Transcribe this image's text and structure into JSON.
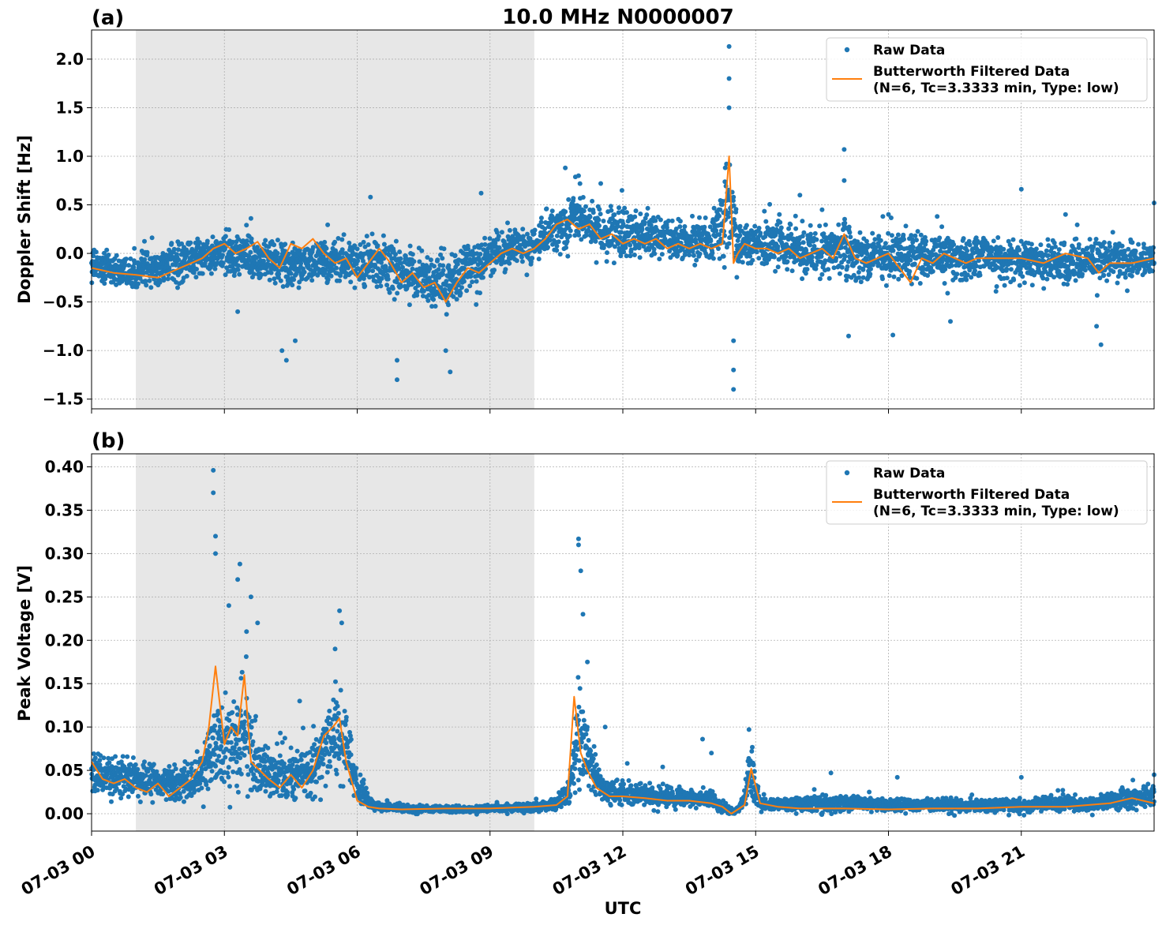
{
  "figure": {
    "title": "10.0 MHz N0000007",
    "xlabel": "UTC",
    "x_tick_labels": [
      "07-03 00",
      "07-03 03",
      "07-03 06",
      "07-03 09",
      "07-03 12",
      "07-03 15",
      "07-03 18",
      "07-03 21"
    ]
  },
  "colors": {
    "raw": "#1f77b4",
    "filtered": "#ff7f0e",
    "shade": "#e7e7e7",
    "grid": "#b0b0b0"
  },
  "chart_data": [
    {
      "type": "scatter",
      "panel_label": "(a)",
      "ylabel": "Doppler Shift [Hz]",
      "xlim_hours": [
        0,
        24
      ],
      "ylim": [
        -1.6,
        2.3
      ],
      "y_ticks": [
        -1.5,
        -1.0,
        -0.5,
        0.0,
        0.5,
        1.0,
        1.5,
        2.0
      ],
      "y_tick_labels": [
        "−1.5",
        "−1.0",
        "−0.5",
        "0.0",
        "0.5",
        "1.0",
        "1.5",
        "2.0"
      ],
      "shaded_span_hours": [
        1.0,
        10.0
      ],
      "grid": true,
      "legend": {
        "position": "top-right",
        "entries": [
          "Raw Data",
          "Butterworth Filtered Data",
          "(N=6, Tc=3.3333 min, Type: low)"
        ]
      },
      "series": [
        {
          "name": "Raw Data",
          "band_x": [
            0,
            0.5,
            1,
            1.5,
            2,
            2.5,
            3,
            3.5,
            4,
            4.5,
            5,
            5.5,
            6,
            6.5,
            7,
            7.5,
            8,
            8.5,
            9,
            9.5,
            10,
            10.5,
            11,
            11.5,
            12,
            12.5,
            13,
            13.5,
            14,
            14.4,
            14.6,
            15,
            15.5,
            16,
            16.5,
            17,
            17.5,
            18,
            18.5,
            19,
            19.5,
            20,
            20.5,
            21,
            21.5,
            22,
            22.5,
            23,
            23.5,
            24
          ],
          "band_lo": [
            -0.35,
            -0.38,
            -0.4,
            -0.42,
            -0.4,
            -0.3,
            -0.3,
            -0.32,
            -0.4,
            -0.45,
            -0.35,
            -0.38,
            -0.4,
            -0.5,
            -0.55,
            -0.6,
            -0.75,
            -0.55,
            -0.35,
            -0.22,
            -0.15,
            0.0,
            0.0,
            -0.12,
            -0.15,
            -0.12,
            -0.1,
            -0.15,
            -0.15,
            -0.3,
            -0.3,
            -0.2,
            -0.25,
            -0.3,
            -0.3,
            -0.35,
            -0.35,
            -0.4,
            -0.35,
            -0.35,
            -0.35,
            -0.35,
            -0.35,
            -0.35,
            -0.35,
            -0.38,
            -0.4,
            -0.35,
            -0.35,
            -0.3
          ],
          "band_hi": [
            0.1,
            0.05,
            0.05,
            0.1,
            0.2,
            0.25,
            0.3,
            0.28,
            0.25,
            0.2,
            0.22,
            0.25,
            0.2,
            0.3,
            0.15,
            0.15,
            0.1,
            0.2,
            0.3,
            0.35,
            0.3,
            0.6,
            0.7,
            0.55,
            0.55,
            0.5,
            0.45,
            0.4,
            0.4,
            1.2,
            0.4,
            0.4,
            0.45,
            0.35,
            0.35,
            0.45,
            0.3,
            0.3,
            0.3,
            0.25,
            0.25,
            0.25,
            0.25,
            0.2,
            0.2,
            0.2,
            0.25,
            0.2,
            0.2,
            0.2
          ],
          "outliers": [
            [
              3.3,
              -0.6
            ],
            [
              4.3,
              -1.0
            ],
            [
              4.4,
              -1.1
            ],
            [
              4.6,
              -0.9
            ],
            [
              6.3,
              0.58
            ],
            [
              6.9,
              -1.3
            ],
            [
              6.9,
              -1.1
            ],
            [
              8.1,
              -1.22
            ],
            [
              8.0,
              -1.0
            ],
            [
              8.8,
              0.62
            ],
            [
              10.7,
              0.88
            ],
            [
              11.0,
              0.8
            ],
            [
              11.5,
              0.72
            ],
            [
              14.4,
              2.13
            ],
            [
              14.4,
              1.8
            ],
            [
              14.4,
              1.5
            ],
            [
              14.5,
              -1.4
            ],
            [
              14.5,
              -1.2
            ],
            [
              14.5,
              -0.9
            ],
            [
              16.0,
              0.6
            ],
            [
              16.5,
              0.45
            ],
            [
              17.0,
              1.07
            ],
            [
              17.0,
              0.75
            ],
            [
              17.1,
              -0.85
            ],
            [
              18.0,
              0.4
            ],
            [
              18.1,
              -0.84
            ],
            [
              19.1,
              0.38
            ],
            [
              19.4,
              -0.7
            ],
            [
              21.0,
              0.66
            ],
            [
              22.0,
              0.4
            ],
            [
              22.8,
              -0.94
            ],
            [
              22.7,
              -0.75
            ],
            [
              24.0,
              0.52
            ]
          ]
        },
        {
          "name": "Butterworth Filtered Data",
          "x": [
            0,
            0.5,
            1,
            1.5,
            2,
            2.25,
            2.5,
            2.75,
            3,
            3.25,
            3.5,
            3.75,
            4,
            4.25,
            4.5,
            4.75,
            5,
            5.25,
            5.5,
            5.75,
            6,
            6.25,
            6.5,
            6.75,
            7,
            7.25,
            7.5,
            7.75,
            8,
            8.25,
            8.5,
            8.75,
            9,
            9.25,
            9.5,
            9.75,
            10,
            10.25,
            10.5,
            10.75,
            11,
            11.25,
            11.5,
            11.75,
            12,
            12.25,
            12.5,
            12.75,
            13,
            13.25,
            13.5,
            13.75,
            14,
            14.25,
            14.4,
            14.5,
            14.6,
            14.75,
            15,
            15.25,
            15.5,
            15.75,
            16,
            16.25,
            16.5,
            16.75,
            17,
            17.25,
            17.5,
            17.75,
            18,
            18.25,
            18.5,
            18.75,
            19,
            19.25,
            19.5,
            19.75,
            20,
            20.5,
            21,
            21.5,
            22,
            22.5,
            22.75,
            23,
            23.5,
            24
          ],
          "y": [
            -0.15,
            -0.2,
            -0.22,
            -0.25,
            -0.15,
            -0.1,
            -0.05,
            0.05,
            0.1,
            0.0,
            0.05,
            0.12,
            -0.05,
            -0.15,
            0.1,
            0.05,
            0.15,
            0.0,
            -0.1,
            -0.05,
            -0.25,
            -0.1,
            0.05,
            -0.1,
            -0.3,
            -0.2,
            -0.35,
            -0.3,
            -0.5,
            -0.3,
            -0.15,
            -0.2,
            -0.1,
            0.0,
            0.05,
            0.0,
            0.05,
            0.15,
            0.3,
            0.35,
            0.25,
            0.3,
            0.15,
            0.2,
            0.1,
            0.15,
            0.1,
            0.15,
            0.05,
            0.1,
            0.05,
            0.1,
            0.05,
            0.1,
            1.0,
            -0.1,
            0.0,
            0.1,
            0.05,
            0.05,
            0.0,
            0.05,
            -0.05,
            0.0,
            0.05,
            -0.05,
            0.2,
            -0.05,
            -0.1,
            -0.05,
            0.0,
            -0.15,
            -0.3,
            -0.05,
            -0.1,
            0.0,
            -0.05,
            -0.1,
            -0.05,
            -0.05,
            -0.05,
            -0.1,
            0.0,
            -0.05,
            -0.2,
            -0.1,
            -0.1,
            -0.05
          ]
        }
      ]
    },
    {
      "type": "scatter",
      "panel_label": "(b)",
      "ylabel": "Peak Voltage [V]",
      "xlim_hours": [
        0,
        24
      ],
      "ylim": [
        -0.02,
        0.415
      ],
      "y_ticks": [
        0.0,
        0.05,
        0.1,
        0.15,
        0.2,
        0.25,
        0.3,
        0.35,
        0.4
      ],
      "y_tick_labels": [
        "0.00",
        "0.05",
        "0.10",
        "0.15",
        "0.20",
        "0.25",
        "0.30",
        "0.35",
        "0.40"
      ],
      "shaded_span_hours": [
        1.0,
        10.0
      ],
      "grid": true,
      "legend": {
        "position": "top-right",
        "entries": [
          "Raw Data",
          "Butterworth Filtered Data",
          "(N=6, Tc=3.3333 min, Type: low)"
        ]
      },
      "series": [
        {
          "name": "Raw Data",
          "band_x": [
            0,
            0.5,
            1,
            1.5,
            2,
            2.5,
            2.75,
            3,
            3.25,
            3.5,
            3.75,
            4,
            4.5,
            5,
            5.25,
            5.5,
            5.75,
            6,
            6.25,
            6.5,
            7,
            8,
            9,
            10,
            10.5,
            10.8,
            11.0,
            11.2,
            11.5,
            12,
            13,
            14,
            14.3,
            14.5,
            14.7,
            14.9,
            15.1,
            15.5,
            16,
            17,
            18,
            19,
            20,
            21,
            22,
            22.5,
            23,
            23.5,
            24
          ],
          "band_lo": [
            0.005,
            0.01,
            0.01,
            0.008,
            0.005,
            0.01,
            0.01,
            0.02,
            0.015,
            0.01,
            0.01,
            0.008,
            0.008,
            0.01,
            0.015,
            0.02,
            0.02,
            0.005,
            0.002,
            0.001,
            0.0,
            0.0,
            0.0,
            0.0,
            0.002,
            0.005,
            0.01,
            0.01,
            0.005,
            0.005,
            0.005,
            0.003,
            0.0,
            -0.002,
            0.0,
            0.005,
            0.0,
            0.0,
            0.0,
            0.0,
            0.0,
            0.0,
            0.0,
            0.0,
            0.0,
            0.0,
            0.0,
            0.0,
            0.0
          ],
          "band_hi": [
            0.08,
            0.075,
            0.07,
            0.065,
            0.06,
            0.08,
            0.15,
            0.13,
            0.18,
            0.16,
            0.1,
            0.09,
            0.08,
            0.1,
            0.14,
            0.16,
            0.13,
            0.06,
            0.025,
            0.015,
            0.012,
            0.01,
            0.012,
            0.015,
            0.02,
            0.05,
            0.17,
            0.12,
            0.05,
            0.04,
            0.035,
            0.03,
            0.015,
            0.005,
            0.02,
            0.095,
            0.02,
            0.02,
            0.025,
            0.025,
            0.02,
            0.02,
            0.02,
            0.02,
            0.025,
            0.02,
            0.03,
            0.035,
            0.04
          ],
          "outliers": [
            [
              2.75,
              0.396
            ],
            [
              2.75,
              0.37
            ],
            [
              2.8,
              0.32
            ],
            [
              2.8,
              0.3
            ],
            [
              3.1,
              0.24
            ],
            [
              3.35,
              0.288
            ],
            [
              3.3,
              0.27
            ],
            [
              3.6,
              0.25
            ],
            [
              3.75,
              0.22
            ],
            [
              3.5,
              0.21
            ],
            [
              5.6,
              0.234
            ],
            [
              5.65,
              0.22
            ],
            [
              5.5,
              0.19
            ],
            [
              4.7,
              0.13
            ],
            [
              11.0,
              0.317
            ],
            [
              11.0,
              0.31
            ],
            [
              11.05,
              0.28
            ],
            [
              11.1,
              0.23
            ],
            [
              11.2,
              0.175
            ],
            [
              11.6,
              0.1
            ],
            [
              12.1,
              0.058
            ],
            [
              12.9,
              0.054
            ],
            [
              13.8,
              0.086
            ],
            [
              14.0,
              0.07
            ],
            [
              14.85,
              0.097
            ],
            [
              16.7,
              0.047
            ],
            [
              18.2,
              0.042
            ],
            [
              21.0,
              0.042
            ],
            [
              24.0,
              0.045
            ]
          ]
        },
        {
          "name": "Butterworth Filtered Data",
          "x": [
            0,
            0.25,
            0.5,
            0.75,
            1,
            1.25,
            1.5,
            1.75,
            2,
            2.25,
            2.5,
            2.65,
            2.8,
            3.0,
            3.15,
            3.3,
            3.45,
            3.6,
            3.8,
            4.0,
            4.25,
            4.5,
            4.75,
            5.0,
            5.25,
            5.45,
            5.6,
            5.75,
            6.0,
            6.25,
            6.5,
            7,
            8,
            9,
            9.5,
            10,
            10.5,
            10.75,
            10.9,
            11.05,
            11.2,
            11.4,
            11.7,
            12,
            12.5,
            13,
            13.5,
            14,
            14.25,
            14.45,
            14.6,
            14.75,
            14.9,
            15.1,
            15.5,
            16,
            17,
            18,
            19,
            20,
            21,
            22,
            23,
            23.5,
            24
          ],
          "y": [
            0.06,
            0.04,
            0.035,
            0.04,
            0.03,
            0.025,
            0.035,
            0.02,
            0.03,
            0.04,
            0.06,
            0.1,
            0.17,
            0.08,
            0.1,
            0.09,
            0.16,
            0.06,
            0.05,
            0.04,
            0.03,
            0.045,
            0.03,
            0.05,
            0.09,
            0.1,
            0.11,
            0.06,
            0.015,
            0.008,
            0.006,
            0.005,
            0.006,
            0.006,
            0.007,
            0.008,
            0.01,
            0.02,
            0.135,
            0.07,
            0.05,
            0.03,
            0.02,
            0.02,
            0.018,
            0.015,
            0.015,
            0.012,
            0.008,
            0.0,
            0.005,
            0.01,
            0.052,
            0.012,
            0.008,
            0.006,
            0.006,
            0.005,
            0.006,
            0.006,
            0.008,
            0.008,
            0.012,
            0.018,
            0.012
          ]
        }
      ]
    }
  ]
}
